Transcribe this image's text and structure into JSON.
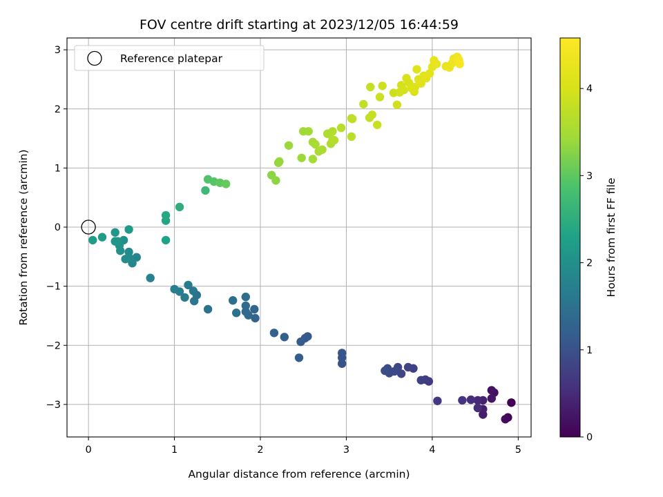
{
  "chart_data": {
    "type": "scatter",
    "title": "FOV centre drift starting at 2023/12/05 16:44:59",
    "xlabel": "Angular distance from reference (arcmin)",
    "ylabel": "Rotation from reference (arcmin)",
    "xlim": [
      -0.25,
      5.15
    ],
    "ylim": [
      -3.55,
      3.2
    ],
    "xticks": [
      0,
      1,
      2,
      3,
      4,
      5
    ],
    "yticks": [
      -3,
      -2,
      -1,
      0,
      1,
      2,
      3
    ],
    "grid": true,
    "legend": {
      "placement": "top-left",
      "entries": [
        "Reference platepar"
      ]
    },
    "reference_point": {
      "x": 0,
      "y": 0,
      "marker": "open-circle",
      "label": "Reference platepar"
    },
    "colorbar": {
      "label": "Hours from first FF file",
      "colormap": "viridis",
      "range": [
        0,
        4.58
      ],
      "ticks": [
        0,
        1,
        2,
        3,
        4
      ]
    },
    "points": [
      {
        "x": 4.92,
        "y": -2.97,
        "c": 0.0
      },
      {
        "x": 4.88,
        "y": -3.22,
        "c": 0.05
      },
      {
        "x": 4.85,
        "y": -3.25,
        "c": 0.1
      },
      {
        "x": 4.72,
        "y": -2.8,
        "c": 0.15
      },
      {
        "x": 4.69,
        "y": -2.76,
        "c": 0.2
      },
      {
        "x": 4.69,
        "y": -2.9,
        "c": 0.25
      },
      {
        "x": 4.59,
        "y": -3.17,
        "c": 0.3
      },
      {
        "x": 4.59,
        "y": -3.08,
        "c": 0.35
      },
      {
        "x": 4.59,
        "y": -2.93,
        "c": 0.4
      },
      {
        "x": 4.53,
        "y": -2.93,
        "c": 0.45
      },
      {
        "x": 4.53,
        "y": -3.06,
        "c": 0.5
      },
      {
        "x": 4.45,
        "y": -2.92,
        "c": 0.55
      },
      {
        "x": 4.35,
        "y": -2.93,
        "c": 0.6
      },
      {
        "x": 4.06,
        "y": -2.94,
        "c": 0.65
      },
      {
        "x": 3.96,
        "y": -2.61,
        "c": 0.7
      },
      {
        "x": 3.92,
        "y": -2.58,
        "c": 0.72
      },
      {
        "x": 3.87,
        "y": -2.59,
        "c": 0.75
      },
      {
        "x": 3.78,
        "y": -2.39,
        "c": 0.78
      },
      {
        "x": 3.72,
        "y": -2.37,
        "c": 0.8
      },
      {
        "x": 3.64,
        "y": -2.48,
        "c": 0.83
      },
      {
        "x": 3.6,
        "y": -2.37,
        "c": 0.86
      },
      {
        "x": 3.56,
        "y": -2.44,
        "c": 0.88
      },
      {
        "x": 3.5,
        "y": -2.47,
        "c": 0.9
      },
      {
        "x": 3.48,
        "y": -2.39,
        "c": 0.92
      },
      {
        "x": 3.45,
        "y": -2.43,
        "c": 0.95
      },
      {
        "x": 2.95,
        "y": -2.31,
        "c": 1.0
      },
      {
        "x": 2.95,
        "y": -2.21,
        "c": 1.03
      },
      {
        "x": 2.95,
        "y": -2.13,
        "c": 1.06
      },
      {
        "x": 2.55,
        "y": -1.85,
        "c": 1.09
      },
      {
        "x": 2.52,
        "y": -1.88,
        "c": 1.12
      },
      {
        "x": 2.47,
        "y": -1.94,
        "c": 1.15
      },
      {
        "x": 2.45,
        "y": -2.21,
        "c": 1.18
      },
      {
        "x": 2.28,
        "y": -1.86,
        "c": 1.21
      },
      {
        "x": 2.16,
        "y": -1.79,
        "c": 1.24
      },
      {
        "x": 1.94,
        "y": -1.54,
        "c": 1.27
      },
      {
        "x": 1.93,
        "y": -1.39,
        "c": 1.3
      },
      {
        "x": 1.86,
        "y": -1.49,
        "c": 1.33
      },
      {
        "x": 1.83,
        "y": -1.43,
        "c": 1.36
      },
      {
        "x": 1.83,
        "y": -1.33,
        "c": 1.39
      },
      {
        "x": 1.83,
        "y": -1.18,
        "c": 1.42
      },
      {
        "x": 1.72,
        "y": -1.45,
        "c": 1.45
      },
      {
        "x": 1.68,
        "y": -1.24,
        "c": 1.48
      },
      {
        "x": 1.39,
        "y": -1.39,
        "c": 1.51
      },
      {
        "x": 1.26,
        "y": -1.15,
        "c": 1.54
      },
      {
        "x": 1.23,
        "y": -1.25,
        "c": 1.57
      },
      {
        "x": 1.22,
        "y": -1.08,
        "c": 1.6
      },
      {
        "x": 1.16,
        "y": -0.98,
        "c": 1.63
      },
      {
        "x": 1.12,
        "y": -1.19,
        "c": 1.66
      },
      {
        "x": 1.06,
        "y": -1.09,
        "c": 1.69
      },
      {
        "x": 1.0,
        "y": -1.05,
        "c": 1.72
      },
      {
        "x": 0.72,
        "y": -0.86,
        "c": 1.76
      },
      {
        "x": 0.56,
        "y": -0.51,
        "c": 1.8
      },
      {
        "x": 0.51,
        "y": -0.61,
        "c": 1.83
      },
      {
        "x": 0.5,
        "y": -0.56,
        "c": 1.86
      },
      {
        "x": 0.47,
        "y": -0.51,
        "c": 1.89
      },
      {
        "x": 0.47,
        "y": -0.42,
        "c": 1.92
      },
      {
        "x": 0.43,
        "y": -0.54,
        "c": 1.95
      },
      {
        "x": 0.41,
        "y": -0.22,
        "c": 1.98
      },
      {
        "x": 0.37,
        "y": -0.4,
        "c": 2.01
      },
      {
        "x": 0.36,
        "y": -0.31,
        "c": 2.04
      },
      {
        "x": 0.34,
        "y": -0.24,
        "c": 2.07
      },
      {
        "x": 0.31,
        "y": -0.09,
        "c": 2.1
      },
      {
        "x": 0.31,
        "y": -0.24,
        "c": 2.13
      },
      {
        "x": 0.47,
        "y": -0.04,
        "c": 2.16
      },
      {
        "x": 0.16,
        "y": -0.17,
        "c": 2.19
      },
      {
        "x": 0.05,
        "y": -0.22,
        "c": 2.22
      },
      {
        "x": 0.9,
        "y": -0.22,
        "c": 2.3
      },
      {
        "x": 0.9,
        "y": 0.11,
        "c": 2.35
      },
      {
        "x": 0.9,
        "y": 0.2,
        "c": 2.4
      },
      {
        "x": 1.06,
        "y": 0.34,
        "c": 2.5
      },
      {
        "x": 1.36,
        "y": 0.62,
        "c": 2.7
      },
      {
        "x": 1.39,
        "y": 0.81,
        "c": 2.9
      },
      {
        "x": 1.46,
        "y": 0.77,
        "c": 2.95
      },
      {
        "x": 1.53,
        "y": 0.75,
        "c": 3.0
      },
      {
        "x": 1.6,
        "y": 0.73,
        "c": 3.05
      },
      {
        "x": 2.13,
        "y": 0.88,
        "c": 3.3
      },
      {
        "x": 2.18,
        "y": 0.79,
        "c": 3.32
      },
      {
        "x": 2.21,
        "y": 1.09,
        "c": 3.35
      },
      {
        "x": 2.22,
        "y": 1.11,
        "c": 3.37
      },
      {
        "x": 2.33,
        "y": 1.38,
        "c": 3.4
      },
      {
        "x": 2.48,
        "y": 1.17,
        "c": 3.42
      },
      {
        "x": 2.5,
        "y": 1.62,
        "c": 3.44
      },
      {
        "x": 2.56,
        "y": 1.62,
        "c": 3.46
      },
      {
        "x": 2.61,
        "y": 1.15,
        "c": 3.48
      },
      {
        "x": 2.61,
        "y": 1.44,
        "c": 3.5
      },
      {
        "x": 2.64,
        "y": 1.4,
        "c": 3.52
      },
      {
        "x": 2.68,
        "y": 1.28,
        "c": 3.54
      },
      {
        "x": 2.72,
        "y": 1.31,
        "c": 3.56
      },
      {
        "x": 2.78,
        "y": 1.58,
        "c": 3.58
      },
      {
        "x": 2.82,
        "y": 1.41,
        "c": 3.6
      },
      {
        "x": 2.84,
        "y": 1.62,
        "c": 3.62
      },
      {
        "x": 2.84,
        "y": 1.48,
        "c": 3.64
      },
      {
        "x": 2.86,
        "y": 1.47,
        "c": 3.66
      },
      {
        "x": 2.94,
        "y": 1.68,
        "c": 3.68
      },
      {
        "x": 3.06,
        "y": 1.53,
        "c": 3.7
      },
      {
        "x": 3.06,
        "y": 1.84,
        "c": 3.72
      },
      {
        "x": 3.07,
        "y": 1.83,
        "c": 3.74
      },
      {
        "x": 3.2,
        "y": 2.08,
        "c": 3.76
      },
      {
        "x": 3.27,
        "y": 1.85,
        "c": 3.78
      },
      {
        "x": 3.28,
        "y": 2.37,
        "c": 3.8
      },
      {
        "x": 3.3,
        "y": 1.9,
        "c": 3.82
      },
      {
        "x": 3.36,
        "y": 1.73,
        "c": 3.84
      },
      {
        "x": 3.39,
        "y": 2.2,
        "c": 3.86
      },
      {
        "x": 3.42,
        "y": 2.39,
        "c": 3.88
      },
      {
        "x": 3.55,
        "y": 2.27,
        "c": 3.9
      },
      {
        "x": 3.59,
        "y": 2.07,
        "c": 3.92
      },
      {
        "x": 3.62,
        "y": 2.28,
        "c": 3.94
      },
      {
        "x": 3.64,
        "y": 2.4,
        "c": 3.96
      },
      {
        "x": 3.67,
        "y": 2.32,
        "c": 3.98
      },
      {
        "x": 3.7,
        "y": 2.52,
        "c": 4.0
      },
      {
        "x": 3.73,
        "y": 2.44,
        "c": 4.02
      },
      {
        "x": 3.76,
        "y": 2.35,
        "c": 4.04
      },
      {
        "x": 3.79,
        "y": 2.29,
        "c": 4.06
      },
      {
        "x": 3.8,
        "y": 2.37,
        "c": 4.08
      },
      {
        "x": 3.82,
        "y": 2.67,
        "c": 4.1
      },
      {
        "x": 3.84,
        "y": 2.5,
        "c": 4.12
      },
      {
        "x": 3.87,
        "y": 2.43,
        "c": 4.14
      },
      {
        "x": 3.9,
        "y": 2.56,
        "c": 4.16
      },
      {
        "x": 3.93,
        "y": 2.52,
        "c": 4.18
      },
      {
        "x": 3.97,
        "y": 2.6,
        "c": 4.2
      },
      {
        "x": 4.0,
        "y": 2.71,
        "c": 4.22
      },
      {
        "x": 4.02,
        "y": 2.82,
        "c": 4.24
      },
      {
        "x": 4.05,
        "y": 2.76,
        "c": 4.26
      },
      {
        "x": 4.16,
        "y": 2.72,
        "c": 4.28
      },
      {
        "x": 4.2,
        "y": 2.7,
        "c": 4.3
      },
      {
        "x": 4.23,
        "y": 2.77,
        "c": 4.32
      },
      {
        "x": 4.25,
        "y": 2.85,
        "c": 4.34
      },
      {
        "x": 4.28,
        "y": 2.86,
        "c": 4.36
      },
      {
        "x": 4.29,
        "y": 2.88,
        "c": 4.38
      },
      {
        "x": 4.3,
        "y": 2.8,
        "c": 4.42
      },
      {
        "x": 4.31,
        "y": 2.83,
        "c": 4.46
      },
      {
        "x": 4.32,
        "y": 2.76,
        "c": 4.5
      }
    ]
  }
}
